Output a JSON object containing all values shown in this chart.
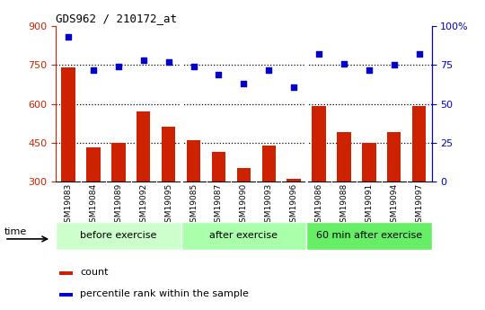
{
  "title": "GDS962 / 210172_at",
  "categories": [
    "GSM19083",
    "GSM19084",
    "GSM19089",
    "GSM19092",
    "GSM19095",
    "GSM19085",
    "GSM19087",
    "GSM19090",
    "GSM19093",
    "GSM19096",
    "GSM19086",
    "GSM19088",
    "GSM19091",
    "GSM19094",
    "GSM19097"
  ],
  "counts": [
    740,
    430,
    450,
    570,
    510,
    460,
    415,
    350,
    440,
    310,
    590,
    490,
    450,
    490,
    590
  ],
  "percentile_ranks": [
    93,
    72,
    74,
    78,
    77,
    74,
    69,
    63,
    72,
    61,
    82,
    76,
    72,
    75,
    82
  ],
  "bar_color": "#cc2200",
  "dot_color": "#0000cc",
  "groups": [
    {
      "label": "before exercise",
      "start": 0,
      "end": 5,
      "color": "#ccffcc"
    },
    {
      "label": "after exercise",
      "start": 5,
      "end": 10,
      "color": "#aaffaa"
    },
    {
      "label": "60 min after exercise",
      "start": 10,
      "end": 15,
      "color": "#66ee66"
    }
  ],
  "ylim_left": [
    300,
    900
  ],
  "ylim_right": [
    0,
    100
  ],
  "yticks_left": [
    300,
    450,
    600,
    750,
    900
  ],
  "yticks_right": [
    0,
    25,
    50,
    75,
    100
  ],
  "hline_values": [
    450,
    600,
    750
  ],
  "right_axis_labels": [
    "0",
    "25",
    "50",
    "75",
    "100%"
  ],
  "legend_items": [
    "count",
    "percentile rank within the sample"
  ],
  "time_label": "time",
  "xtick_bg": "#cccccc",
  "left_spine_color": "#cc2200",
  "right_spine_color": "#0000cc"
}
